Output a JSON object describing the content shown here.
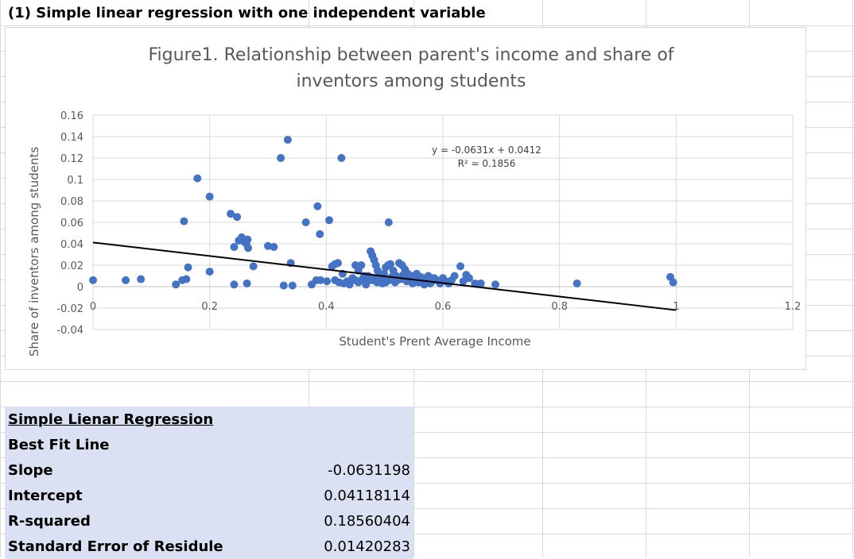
{
  "sheet": {
    "heading": "(1) Simple linear regression with one independent variable"
  },
  "chart_data": {
    "type": "scatter",
    "title": "Figure1. Relationship between parent's income and share of inventors among students",
    "xlabel": "Student's Prent Average Income",
    "ylabel": "Share of inventors among students",
    "xlim": [
      0,
      1.2
    ],
    "ylim": [
      -0.04,
      0.16
    ],
    "x_ticks": [
      "0",
      "0.2",
      "0.4",
      "0.6",
      "0.8",
      "1",
      "1.2"
    ],
    "y_ticks": [
      "-0.04",
      "-0.02",
      "0",
      "0.02",
      "0.04",
      "0.06",
      "0.08",
      "0.1",
      "0.12",
      "0.14",
      "0.16"
    ],
    "grid": true,
    "marker_color": "#4472c4",
    "trendline": {
      "slope": -0.0631,
      "intercept": 0.0412,
      "color": "#000000",
      "equation": "y = -0.0631x + 0.0412",
      "r_squared": "R² = 0.1856"
    },
    "points": [
      [
        0.0,
        0.006
      ],
      [
        0.056,
        0.006
      ],
      [
        0.082,
        0.007
      ],
      [
        0.142,
        0.002
      ],
      [
        0.153,
        0.006
      ],
      [
        0.16,
        0.007
      ],
      [
        0.163,
        0.018
      ],
      [
        0.156,
        0.061
      ],
      [
        0.179,
        0.101
      ],
      [
        0.2,
        0.084
      ],
      [
        0.2,
        0.014
      ],
      [
        0.236,
        0.068
      ],
      [
        0.247,
        0.065
      ],
      [
        0.242,
        0.037
      ],
      [
        0.25,
        0.043
      ],
      [
        0.255,
        0.046
      ],
      [
        0.259,
        0.042
      ],
      [
        0.265,
        0.044
      ],
      [
        0.263,
        0.04
      ],
      [
        0.266,
        0.036
      ],
      [
        0.275,
        0.019
      ],
      [
        0.242,
        0.002
      ],
      [
        0.264,
        0.003
      ],
      [
        0.3,
        0.038
      ],
      [
        0.31,
        0.037
      ],
      [
        0.322,
        0.12
      ],
      [
        0.334,
        0.137
      ],
      [
        0.339,
        0.022
      ],
      [
        0.327,
        0.001
      ],
      [
        0.342,
        0.001
      ],
      [
        0.365,
        0.06
      ],
      [
        0.385,
        0.075
      ],
      [
        0.389,
        0.049
      ],
      [
        0.405,
        0.062
      ],
      [
        0.426,
        0.12
      ],
      [
        0.507,
        0.06
      ],
      [
        0.375,
        0.002
      ],
      [
        0.383,
        0.006
      ],
      [
        0.39,
        0.006
      ],
      [
        0.401,
        0.005
      ],
      [
        0.41,
        0.019
      ],
      [
        0.415,
        0.021
      ],
      [
        0.42,
        0.022
      ],
      [
        0.415,
        0.006
      ],
      [
        0.422,
        0.004
      ],
      [
        0.428,
        0.012
      ],
      [
        0.436,
        0.005
      ],
      [
        0.445,
        0.008
      ],
      [
        0.45,
        0.02
      ],
      [
        0.455,
        0.015
      ],
      [
        0.46,
        0.02
      ],
      [
        0.465,
        0.01
      ],
      [
        0.47,
        0.005
      ],
      [
        0.476,
        0.033
      ],
      [
        0.479,
        0.029
      ],
      [
        0.482,
        0.025
      ],
      [
        0.485,
        0.02
      ],
      [
        0.488,
        0.015
      ],
      [
        0.49,
        0.01
      ],
      [
        0.493,
        0.005
      ],
      [
        0.496,
        0.003
      ],
      [
        0.499,
        0.012
      ],
      [
        0.502,
        0.018
      ],
      [
        0.506,
        0.02
      ],
      [
        0.51,
        0.021
      ],
      [
        0.515,
        0.015
      ],
      [
        0.52,
        0.01
      ],
      [
        0.525,
        0.022
      ],
      [
        0.53,
        0.02
      ],
      [
        0.535,
        0.016
      ],
      [
        0.54,
        0.012
      ],
      [
        0.545,
        0.01
      ],
      [
        0.55,
        0.008
      ],
      [
        0.555,
        0.012
      ],
      [
        0.56,
        0.006
      ],
      [
        0.565,
        0.005
      ],
      [
        0.57,
        0.008
      ],
      [
        0.575,
        0.01
      ],
      [
        0.58,
        0.004
      ],
      [
        0.585,
        0.008
      ],
      [
        0.59,
        0.006
      ],
      [
        0.595,
        0.003
      ],
      [
        0.6,
        0.008
      ],
      [
        0.605,
        0.005
      ],
      [
        0.61,
        0.003
      ],
      [
        0.615,
        0.006
      ],
      [
        0.62,
        0.01
      ],
      [
        0.63,
        0.019
      ],
      [
        0.635,
        0.005
      ],
      [
        0.64,
        0.011
      ],
      [
        0.645,
        0.008
      ],
      [
        0.655,
        0.003
      ],
      [
        0.665,
        0.003
      ],
      [
        0.69,
        0.002
      ],
      [
        0.83,
        0.003
      ],
      [
        0.99,
        0.009
      ],
      [
        0.995,
        0.004
      ],
      [
        0.43,
        0.003
      ],
      [
        0.44,
        0.002
      ],
      [
        0.455,
        0.004
      ],
      [
        0.468,
        0.002
      ],
      [
        0.478,
        0.006
      ],
      [
        0.487,
        0.004
      ],
      [
        0.498,
        0.007
      ],
      [
        0.508,
        0.006
      ],
      [
        0.518,
        0.004
      ],
      [
        0.528,
        0.007
      ],
      [
        0.538,
        0.005
      ],
      [
        0.548,
        0.003
      ],
      [
        0.558,
        0.004
      ],
      [
        0.568,
        0.002
      ],
      [
        0.578,
        0.003
      ],
      [
        0.45,
        0.006
      ],
      [
        0.462,
        0.007
      ],
      [
        0.472,
        0.01
      ],
      [
        0.482,
        0.008
      ],
      [
        0.492,
        0.009
      ],
      [
        0.502,
        0.004
      ],
      [
        0.512,
        0.009
      ],
      [
        0.522,
        0.006
      ],
      [
        0.532,
        0.011
      ],
      [
        0.542,
        0.007
      ],
      [
        0.552,
        0.005
      ],
      [
        0.562,
        0.009
      ]
    ]
  },
  "stats_table": {
    "title": "Simple Lienar Regression",
    "subtitle": "Best Fit Line",
    "rows": [
      {
        "label": "Slope",
        "value": "-0.0631198"
      },
      {
        "label": "Intercept",
        "value": "0.04118114"
      },
      {
        "label": "R-squared",
        "value": "0.18560404"
      },
      {
        "label": "Standard Error of Residule",
        "value": "0.01420283"
      }
    ]
  },
  "colors": {
    "grid": "#d9d9d9",
    "table_fill": "#d9e1f2",
    "axis_text": "#595959"
  }
}
